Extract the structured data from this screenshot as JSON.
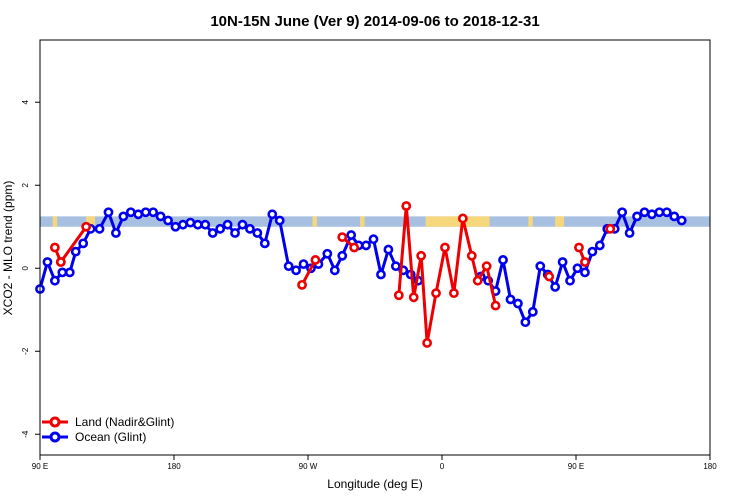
{
  "chart_data": {
    "type": "line",
    "title": "10N-15N June (Ver 9)   2014-09-06 to 2018-12-31",
    "xlabel": "Longitude (deg E)",
    "ylabel": "XCO2 - MLO trend (ppm)",
    "xlim": [
      90,
      450
    ],
    "ylim": [
      -4.5,
      5.5
    ],
    "x_ticks": [
      {
        "value": 90,
        "label": "90 E"
      },
      {
        "value": 180,
        "label": "180"
      },
      {
        "value": 270,
        "label": "90 W"
      },
      {
        "value": 360,
        "label": "0"
      },
      {
        "value": 450,
        "label": "90 E"
      },
      {
        "value": 540,
        "label": "180"
      }
    ],
    "y_ticks": [
      {
        "value": -4,
        "label": "-4"
      },
      {
        "value": -2,
        "label": "-2"
      },
      {
        "value": 0,
        "label": "0"
      },
      {
        "value": 2,
        "label": "2"
      },
      {
        "value": 4,
        "label": "4"
      }
    ],
    "legend_position": "bottom-left",
    "band": {
      "ymin": 1.0,
      "ymax": 1.25,
      "ocean_color": "#a7bfe0",
      "land_color": "#f7d77c"
    },
    "land_spans": [
      [
        98.5,
        101.5
      ],
      [
        121,
        127
      ],
      [
        273,
        276
      ],
      [
        305,
        308
      ],
      [
        349,
        392
      ],
      [
        418,
        421
      ],
      [
        436,
        442
      ]
    ],
    "series": [
      {
        "name": "Land (Nadir&Glint)",
        "color": "#ee0000",
        "segments": [
          [
            [
              100,
              0.5
            ],
            [
              104,
              0.15
            ]
          ],
          [
            [
              104,
              0.15
            ],
            [
              121,
              1.0
            ]
          ],
          [
            [
              266,
              -0.4
            ],
            [
              275,
              0.2
            ]
          ],
          [
            [
              293,
              0.75
            ],
            [
              301,
              0.5
            ]
          ],
          [
            [
              331,
              -0.65
            ],
            [
              336,
              1.5
            ],
            [
              341,
              -0.7
            ],
            [
              346,
              0.3
            ],
            [
              350,
              -1.8
            ],
            [
              356,
              -0.6
            ],
            [
              362,
              0.5
            ],
            [
              368,
              -0.6
            ],
            [
              374,
              1.2
            ],
            [
              380,
              0.3
            ],
            [
              384,
              -0.3
            ],
            [
              390,
              0.05
            ],
            [
              396,
              -0.9
            ]
          ],
          [
            [
              432,
              -0.2
            ]
          ],
          [
            [
              452,
              0.5
            ],
            [
              456,
              0.15
            ]
          ],
          [
            [
              473,
              0.95
            ]
          ]
        ]
      },
      {
        "name": "Ocean (Glint)",
        "color": "#0000ee",
        "points": [
          [
            90,
            -0.5
          ],
          [
            95,
            0.15
          ],
          [
            100,
            -0.3
          ],
          [
            105,
            -0.1
          ],
          [
            110,
            -0.1
          ],
          [
            114,
            0.4
          ],
          [
            119,
            0.6
          ],
          [
            124,
            0.95
          ],
          [
            130,
            0.95
          ],
          [
            136,
            1.35
          ],
          [
            141,
            0.85
          ],
          [
            146,
            1.25
          ],
          [
            151,
            1.35
          ],
          [
            156,
            1.3
          ],
          [
            161,
            1.35
          ],
          [
            166,
            1.35
          ],
          [
            171,
            1.25
          ],
          [
            176,
            1.15
          ],
          [
            181,
            1.0
          ],
          [
            186,
            1.05
          ],
          [
            191,
            1.1
          ],
          [
            196,
            1.05
          ],
          [
            201,
            1.05
          ],
          [
            206,
            0.85
          ],
          [
            211,
            0.95
          ],
          [
            216,
            1.05
          ],
          [
            221,
            0.85
          ],
          [
            226,
            1.05
          ],
          [
            231,
            0.95
          ],
          [
            236,
            0.85
          ],
          [
            241,
            0.6
          ],
          [
            246,
            1.3
          ],
          [
            251,
            1.15
          ],
          [
            257,
            0.05
          ],
          [
            262,
            -0.05
          ],
          [
            267,
            0.1
          ],
          [
            272,
            0.0
          ],
          [
            277,
            0.1
          ],
          [
            283,
            0.35
          ],
          [
            288,
            -0.05
          ],
          [
            293,
            0.3
          ],
          [
            299,
            0.8
          ],
          [
            304,
            0.55
          ],
          [
            309,
            0.55
          ],
          [
            314,
            0.7
          ],
          [
            319,
            -0.15
          ],
          [
            324,
            0.45
          ],
          [
            329,
            0.05
          ],
          [
            334,
            -0.05
          ],
          [
            339,
            -0.15
          ],
          [
            344,
            -0.3
          ]
        ],
        "points_2": [
          [
            386,
            -0.2
          ],
          [
            391,
            -0.3
          ],
          [
            396,
            -0.55
          ],
          [
            401,
            0.2
          ],
          [
            406,
            -0.75
          ],
          [
            411,
            -0.85
          ],
          [
            416,
            -1.3
          ],
          [
            421,
            -1.05
          ],
          [
            426,
            0.05
          ],
          [
            431,
            -0.15
          ],
          [
            436,
            -0.45
          ],
          [
            441,
            0.15
          ],
          [
            446,
            -0.3
          ],
          [
            451,
            0.0
          ],
          [
            456,
            -0.1
          ],
          [
            461,
            0.4
          ],
          [
            466,
            0.55
          ],
          [
            471,
            0.95
          ],
          [
            476,
            0.95
          ],
          [
            481,
            1.35
          ],
          [
            486,
            0.85
          ],
          [
            491,
            1.25
          ],
          [
            496,
            1.35
          ],
          [
            501,
            1.3
          ],
          [
            506,
            1.35
          ],
          [
            511,
            1.35
          ],
          [
            516,
            1.25
          ],
          [
            521,
            1.15
          ]
        ]
      }
    ]
  }
}
